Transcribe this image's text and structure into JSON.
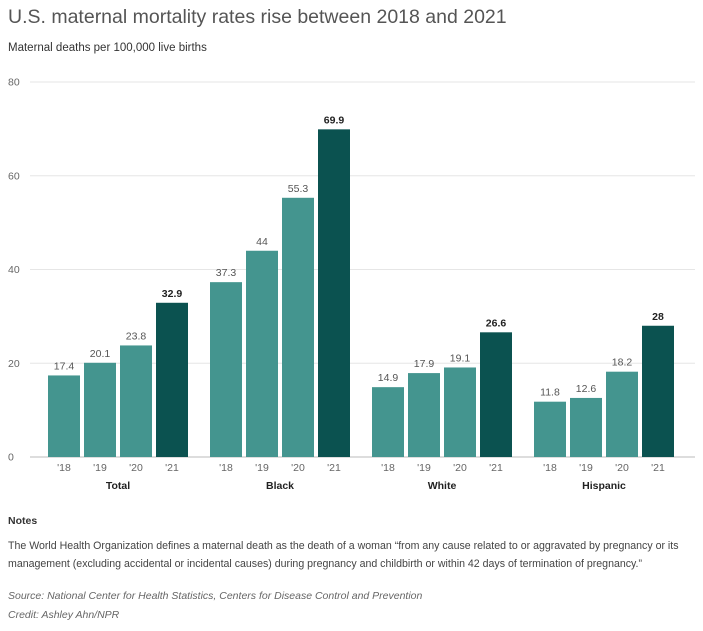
{
  "header": {
    "title": "U.S. maternal mortality rates rise between 2018 and 2021",
    "subtitle": "Maternal deaths per 100,000 live births"
  },
  "chart_data": {
    "type": "bar",
    "title": "U.S. maternal mortality rates rise between 2018 and 2021",
    "subtitle": "Maternal deaths per 100,000 live births",
    "ylim": [
      0,
      80
    ],
    "yticks": [
      0,
      20,
      40,
      60,
      80
    ],
    "grid": true,
    "colors": {
      "base": "#44958f",
      "highlight": "#0b5250",
      "grid": "#e6e6e6"
    },
    "groups": [
      {
        "name": "Total",
        "categories": [
          "'18",
          "'19",
          "'20",
          "'21"
        ],
        "values": [
          17.4,
          20.1,
          23.8,
          32.9
        ],
        "labels": [
          "17.4",
          "20.1",
          "23.8",
          "32.9"
        ]
      },
      {
        "name": "Black",
        "categories": [
          "'18",
          "'19",
          "'20",
          "'21"
        ],
        "values": [
          37.3,
          44,
          55.3,
          69.9
        ],
        "labels": [
          "37.3",
          "44",
          "55.3",
          "69.9"
        ]
      },
      {
        "name": "White",
        "categories": [
          "'18",
          "'19",
          "'20",
          "'21"
        ],
        "values": [
          14.9,
          17.9,
          19.1,
          26.6
        ],
        "labels": [
          "14.9",
          "17.9",
          "19.1",
          "26.6"
        ]
      },
      {
        "name": "Hispanic",
        "categories": [
          "'18",
          "'19",
          "'20",
          "'21"
        ],
        "values": [
          11.8,
          12.6,
          18.2,
          28
        ],
        "labels": [
          "11.8",
          "12.6",
          "18.2",
          "28"
        ]
      }
    ],
    "highlight_category": "'21"
  },
  "notes": {
    "heading": "Notes",
    "text": "The World Health Organization defines a maternal death as the death of a woman “from any cause related to or aggravated by pregnancy or its management (excluding accidental or incidental causes) during pregnancy and childbirth or within 42 days of termination of pregnancy.”"
  },
  "footer": {
    "source": "Source: National Center for Health Statistics, Centers for Disease Control and Prevention",
    "credit": "Credit: Ashley Ahn/NPR"
  }
}
